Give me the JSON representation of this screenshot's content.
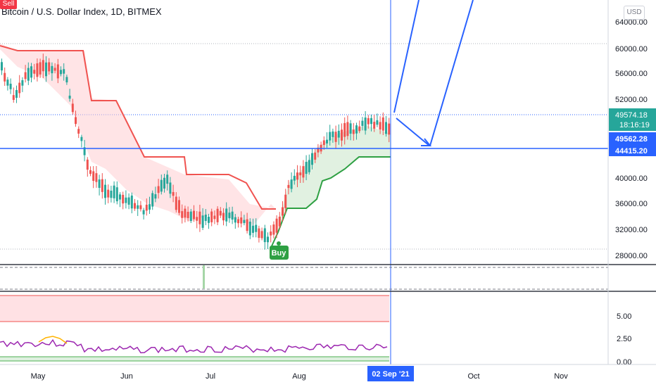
{
  "header": {
    "title": "Bitcoin / U.S. Dollar Index, 1D, BITMEX",
    "currency": "USD"
  },
  "signals": {
    "sell": "Sell",
    "buy": "Buy"
  },
  "price_axis": {
    "ticks": [
      "64000.00",
      "60000.00",
      "56000.00",
      "52000.00",
      "40000.00",
      "36000.00",
      "32000.00",
      "28000.00"
    ],
    "last_price": "49574.18",
    "countdown": "18:16:19",
    "crosshair_price": "49562.28",
    "hline_price": "44415.20",
    "colors": {
      "last": "#26a69a",
      "line": "#2962ff"
    }
  },
  "indicator_axis": {
    "ticks": [
      "5.00",
      "2.50",
      "0.00"
    ]
  },
  "time_axis": {
    "labels": [
      "May",
      "Jun",
      "Jul",
      "Aug",
      "Oct",
      "Nov"
    ],
    "crosshair_date": "02 Sep '21"
  },
  "colors": {
    "up": "#26a69a",
    "down": "#ef5350",
    "drawing": "#2962ff",
    "supertrend_down": "#f05350",
    "supertrend_up": "#2ea043"
  }
}
